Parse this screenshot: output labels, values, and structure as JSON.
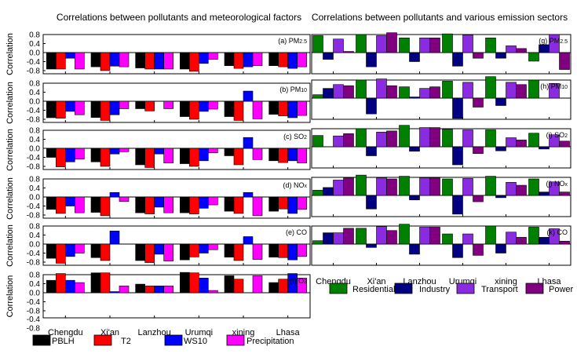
{
  "chart_data": [
    {
      "type": "bar",
      "title": "Correlations between pollutants and meteorological factors",
      "ylabel": "Correlation",
      "ylim": [
        -0.8,
        0.8
      ],
      "yticks": [
        "0.8",
        "0.4",
        "0.0",
        "-0.4",
        "-0.8"
      ],
      "categories": [
        "Chengdu",
        "Xi'an",
        "Lanzhou",
        "Urumqi",
        "xining",
        "Lhasa"
      ],
      "legend": [
        {
          "name": "PBLH",
          "color": "#000000"
        },
        {
          "name": "T2",
          "color": "#ff0000"
        },
        {
          "name": "WS10",
          "color": "#0000ff"
        },
        {
          "name": "Precipitation",
          "color": "#ff00ff"
        }
      ],
      "panels": [
        {
          "label": "(a) PM",
          "sub": "2.5",
          "values": [
            [
              -0.73,
              -0.73,
              -0.25,
              -0.73
            ],
            [
              -0.63,
              -0.8,
              -0.6,
              -0.63
            ],
            [
              -0.68,
              -0.73,
              -0.73,
              -0.73
            ],
            [
              -0.73,
              -0.83,
              -0.48,
              -0.3
            ],
            [
              -0.58,
              -0.7,
              -0.63,
              -0.58
            ],
            [
              -0.58,
              -0.63,
              -0.7,
              -0.63
            ]
          ]
        },
        {
          "label": "(b) PM",
          "sub": "10",
          "values": [
            [
              -0.73,
              -0.75,
              -0.45,
              -0.6
            ],
            [
              -0.72,
              -0.85,
              -0.6,
              -0.33
            ],
            [
              -0.33,
              -0.43,
              0.0,
              -0.33
            ],
            [
              -0.68,
              -0.8,
              -0.45,
              -0.35
            ],
            [
              -0.68,
              -0.85,
              0.45,
              -0.78
            ],
            [
              -0.58,
              -0.65,
              -0.73,
              -0.63
            ]
          ]
        },
        {
          "label": "(c) SO",
          "sub": "2",
          "values": [
            [
              -0.4,
              -0.82,
              -0.6,
              -0.48
            ],
            [
              -0.6,
              -0.8,
              -0.25,
              -0.15
            ],
            [
              -0.73,
              -0.85,
              -0.25,
              -0.65
            ],
            [
              -0.68,
              -0.8,
              -0.55,
              -0.2
            ],
            [
              -0.33,
              -0.73,
              0.48,
              -0.5
            ],
            [
              -0.55,
              -0.63,
              -0.55,
              -0.65
            ]
          ]
        },
        {
          "label": "(d) NO",
          "sub": "x",
          "values": [
            [
              -0.55,
              -0.73,
              -0.4,
              -0.7
            ],
            [
              -0.68,
              -0.83,
              0.2,
              -0.2
            ],
            [
              -0.7,
              -0.75,
              -0.45,
              -0.7
            ],
            [
              -0.7,
              -0.75,
              -0.5,
              -0.35
            ],
            [
              -0.63,
              -0.73,
              0.2,
              -0.83
            ],
            [
              -0.63,
              -0.53,
              -0.73,
              -0.55
            ]
          ]
        },
        {
          "label": "(e) CO",
          "sub": "",
          "values": [
            [
              -0.63,
              -0.85,
              -0.55,
              -0.4
            ],
            [
              -0.6,
              -0.73,
              0.58,
              0.0
            ],
            [
              -0.73,
              -0.82,
              -0.45,
              -0.75
            ],
            [
              -0.7,
              -0.57,
              -0.4,
              -0.25
            ],
            [
              -0.58,
              -0.73,
              0.33,
              -0.68
            ],
            [
              -0.58,
              -0.6,
              -0.7,
              -0.55
            ]
          ]
        },
        {
          "label": "(f) O",
          "sub": "3",
          "values": [
            [
              0.55,
              0.85,
              0.55,
              0.45
            ],
            [
              0.88,
              0.88,
              0.05,
              0.3
            ],
            [
              0.38,
              0.3,
              0.3,
              0.3
            ],
            [
              0.9,
              0.88,
              0.65,
              0.1
            ],
            [
              0.75,
              0.6,
              0.0,
              0.75
            ],
            [
              0.45,
              0.6,
              0.85,
              0.65
            ]
          ]
        }
      ]
    },
    {
      "type": "bar",
      "title": "Correlations between pollutants and various emission sectors",
      "ylim": [
        -0.8,
        0.8
      ],
      "categories": [
        "Chengdu",
        "Xi'an",
        "Lanzhou",
        "Urumqi",
        "xining",
        "Lhasa"
      ],
      "legend": [
        {
          "name": "Residential",
          "color": "#008000"
        },
        {
          "name": "Industry",
          "color": "#000080"
        },
        {
          "name": "Transport",
          "color": "#8a2be2"
        },
        {
          "name": "Power",
          "color": "#800080"
        }
      ],
      "panels": [
        {
          "label": "(g) PM",
          "sub": "2.5",
          "values": [
            [
              0.75,
              -0.3,
              0.6,
              0.05
            ],
            [
              0.8,
              -0.63,
              0.75,
              0.88
            ],
            [
              0.65,
              -0.4,
              0.65,
              0.65
            ],
            [
              0.83,
              -0.6,
              0.78,
              -0.25
            ],
            [
              0.65,
              -0.25,
              0.3,
              0.18
            ],
            [
              -0.38,
              0.35,
              0.8,
              -0.75
            ]
          ]
        },
        {
          "label": "(h) PM",
          "sub": "10",
          "values": [
            [
              0.15,
              0.43,
              0.6,
              0.55
            ],
            [
              0.8,
              -0.7,
              0.85,
              0.55
            ],
            [
              0.5,
              0.05,
              0.43,
              0.5
            ],
            [
              0.75,
              -0.9,
              0.7,
              -0.4
            ],
            [
              0.95,
              -0.33,
              0.7,
              0.6
            ],
            [
              0.8,
              0.0,
              0.65,
              0.0
            ]
          ]
        },
        {
          "label": "(i) SO",
          "sub": "2",
          "values": [
            [
              0.5,
              0.0,
              0.48,
              0.58
            ],
            [
              0.8,
              -0.4,
              0.65,
              0.7
            ],
            [
              0.95,
              -0.2,
              0.85,
              0.85
            ],
            [
              0.78,
              -0.8,
              0.75,
              -0.3
            ],
            [
              0.75,
              -0.18,
              0.4,
              0.3
            ],
            [
              0.6,
              -0.1,
              0.53,
              0.25
            ]
          ]
        },
        {
          "label": "(j) NO",
          "sub": "x",
          "values": [
            [
              0.23,
              0.35,
              0.68,
              0.78
            ],
            [
              0.9,
              -0.6,
              0.78,
              0.73
            ],
            [
              0.85,
              -0.2,
              0.78,
              0.78
            ],
            [
              0.73,
              -0.83,
              0.75,
              -0.28
            ],
            [
              0.85,
              -0.1,
              0.58,
              0.45
            ],
            [
              0.73,
              0.15,
              0.6,
              0.15
            ]
          ]
        },
        {
          "label": "(k) CO",
          "sub": "",
          "values": [
            [
              0.15,
              0.5,
              0.5,
              0.7
            ],
            [
              0.7,
              -0.15,
              0.78,
              0.6
            ],
            [
              0.88,
              -0.45,
              0.75,
              0.75
            ],
            [
              0.45,
              -0.6,
              0.45,
              -0.5
            ],
            [
              0.8,
              -0.4,
              0.53,
              0.3
            ],
            [
              0.75,
              0.3,
              0.68,
              0.13
            ]
          ]
        }
      ]
    }
  ]
}
